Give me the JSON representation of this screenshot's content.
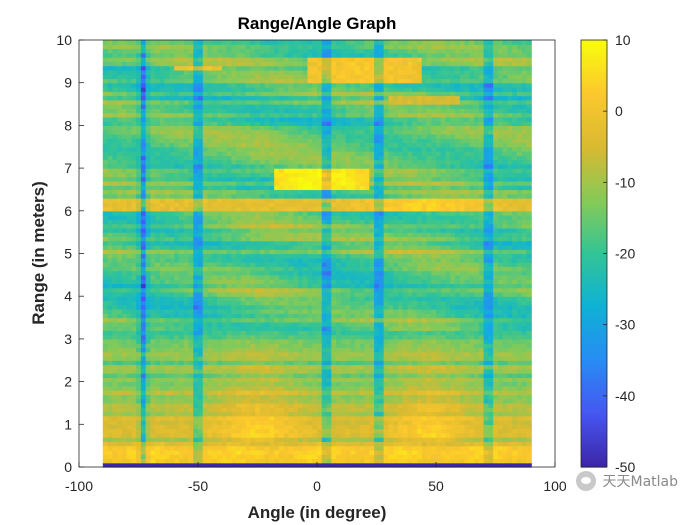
{
  "chart_data": {
    "type": "heatmap",
    "title": "Range/Angle Graph",
    "xlabel": "Angle (in degree)",
    "ylabel": "Range (in meters)",
    "xlim": [
      -100,
      100
    ],
    "ylim": [
      0,
      10
    ],
    "data_x_extent": [
      -90,
      90
    ],
    "xticks": [
      "-100",
      "-50",
      "0",
      "50",
      "100"
    ],
    "yticks": [
      "0",
      "1",
      "2",
      "3",
      "4",
      "5",
      "6",
      "7",
      "8",
      "9",
      "10"
    ],
    "colorbar": {
      "min": -50,
      "max": 10,
      "ticks": [
        "-50",
        "-40",
        "-30",
        "-20",
        "-10",
        "0",
        "10"
      ],
      "colormap": "parula"
    },
    "grid": false,
    "dominant_features": [
      {
        "region": "range 0.0-0.15 m, all angles",
        "level_db": -50
      },
      {
        "region": "range 0.2-0.6 m, all angles",
        "level_db": 8
      },
      {
        "region": "range ~6.15 m, all angles",
        "level_db": 2
      },
      {
        "region": "range ~6.5-7.0 m, angle -15 to 20",
        "level_db": 9
      },
      {
        "region": "range ~9.0-10.0 m, angle 0 to 45",
        "level_db": 2
      },
      {
        "region": "range 1-3 m, angle -40 to -10 and 30 to 65",
        "level_db": -2
      },
      {
        "region": "range 3-10 m background",
        "level_db": -17
      }
    ],
    "null_angles_deg": [
      -73,
      -50,
      4,
      26,
      72
    ]
  },
  "watermark": {
    "text": "天天Matlab"
  }
}
